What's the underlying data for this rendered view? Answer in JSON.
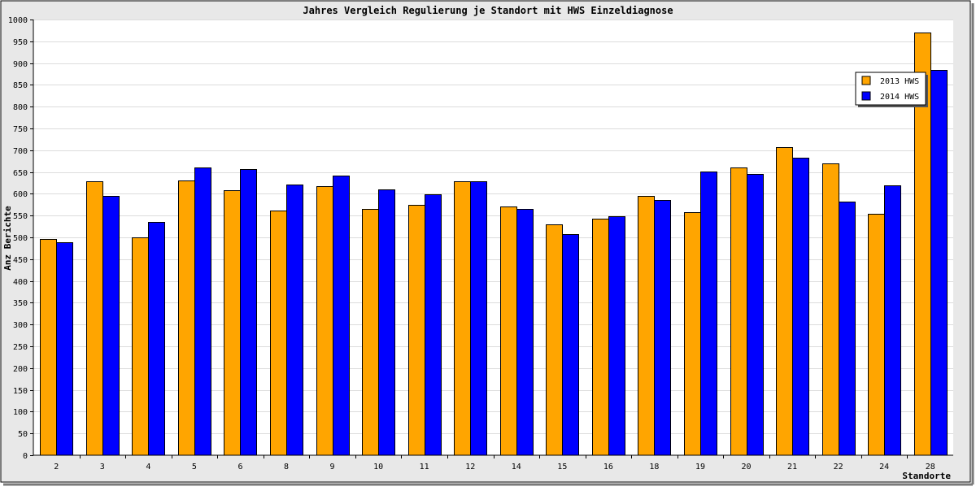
{
  "chart_data": {
    "type": "bar",
    "title": "Jahres Vergleich Regulierung je Standort mit HWS Einzeldiagnose",
    "xlabel": "Standorte",
    "ylabel": "Anz Berichte",
    "ylim": [
      0,
      1000
    ],
    "ytick_step": 50,
    "grid": true,
    "legend_position": "top-right",
    "categories": [
      "2",
      "3",
      "4",
      "5",
      "6",
      "8",
      "9",
      "10",
      "11",
      "12",
      "14",
      "15",
      "16",
      "18",
      "19",
      "20",
      "21",
      "22",
      "24",
      "28"
    ],
    "series": [
      {
        "name": "2013 HWS",
        "color": "#ffa500",
        "values": [
          496,
          628,
          500,
          630,
          608,
          561,
          617,
          565,
          574,
          628,
          570,
          530,
          543,
          595,
          558,
          661,
          708,
          670,
          554,
          971
        ]
      },
      {
        "name": "2014 HWS",
        "color": "#0000ff",
        "values": [
          488,
          596,
          535,
          661,
          656,
          621,
          642,
          611,
          598,
          628,
          566,
          508,
          548,
          585,
          652,
          646,
          682,
          582,
          619,
          884
        ]
      }
    ]
  }
}
